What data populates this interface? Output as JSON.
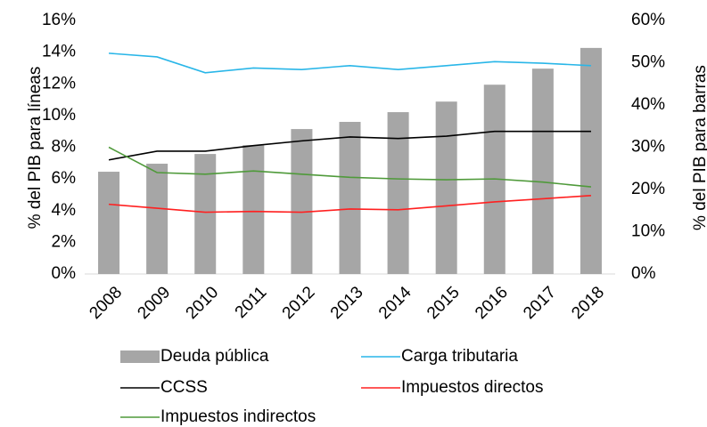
{
  "chart_data": {
    "type": "bar-line",
    "ylabel": "% del PIB para líneas",
    "y2label": "% del PIB para barras",
    "categories": [
      "2008",
      "2009",
      "2010",
      "2011",
      "2012",
      "2013",
      "2014",
      "2015",
      "2016",
      "2017",
      "2018"
    ],
    "ylim": [
      0,
      16
    ],
    "yticks": [
      {
        "value": 0,
        "label": "0%"
      },
      {
        "value": 2,
        "label": "2%"
      },
      {
        "value": 4,
        "label": "4%"
      },
      {
        "value": 6,
        "label": "6%"
      },
      {
        "value": 8,
        "label": "8%"
      },
      {
        "value": 10,
        "label": "10%"
      },
      {
        "value": 12,
        "label": "12%"
      },
      {
        "value": 14,
        "label": "14%"
      },
      {
        "value": 16,
        "label": "16%"
      }
    ],
    "y2lim": [
      0,
      60
    ],
    "y2ticks": [
      {
        "value": 0,
        "label": "0%"
      },
      {
        "value": 10,
        "label": "10%"
      },
      {
        "value": 20,
        "label": "20%"
      },
      {
        "value": 30,
        "label": "30%"
      },
      {
        "value": 40,
        "label": "40%"
      },
      {
        "value": 50,
        "label": "50%"
      },
      {
        "value": 60,
        "label": "60%"
      }
    ],
    "series": [
      {
        "name": "Deuda pública",
        "type": "bar",
        "axis": "y2",
        "color": "#a6a6a6",
        "values": [
          24.2,
          26.1,
          28.4,
          30.5,
          34.3,
          36,
          38.3,
          40.8,
          44.8,
          48.6,
          53.5
        ]
      },
      {
        "name": "Carga tributaria",
        "type": "line",
        "color": "#29b6e8",
        "values": [
          13.93,
          13.7,
          12.7,
          13.0,
          12.9,
          13.15,
          12.9,
          13.15,
          13.4,
          13.3,
          13.15
        ]
      },
      {
        "name": "CCSS",
        "type": "line",
        "color": "#000000",
        "values": [
          7.2,
          7.75,
          7.75,
          8.1,
          8.4,
          8.65,
          8.55,
          8.7,
          9.0,
          9.0,
          9.0
        ]
      },
      {
        "name": "Impuestos directos",
        "type": "line",
        "color": "#ff2020",
        "values": [
          4.4,
          4.15,
          3.9,
          3.95,
          3.9,
          4.1,
          4.05,
          4.3,
          4.55,
          4.75,
          4.95
        ]
      },
      {
        "name": "Impuestos indirectos",
        "type": "line",
        "color": "#4f9a3a",
        "values": [
          8.0,
          6.4,
          6.3,
          6.5,
          6.3,
          6.1,
          6.0,
          5.95,
          6.0,
          5.8,
          5.5
        ]
      }
    ]
  }
}
